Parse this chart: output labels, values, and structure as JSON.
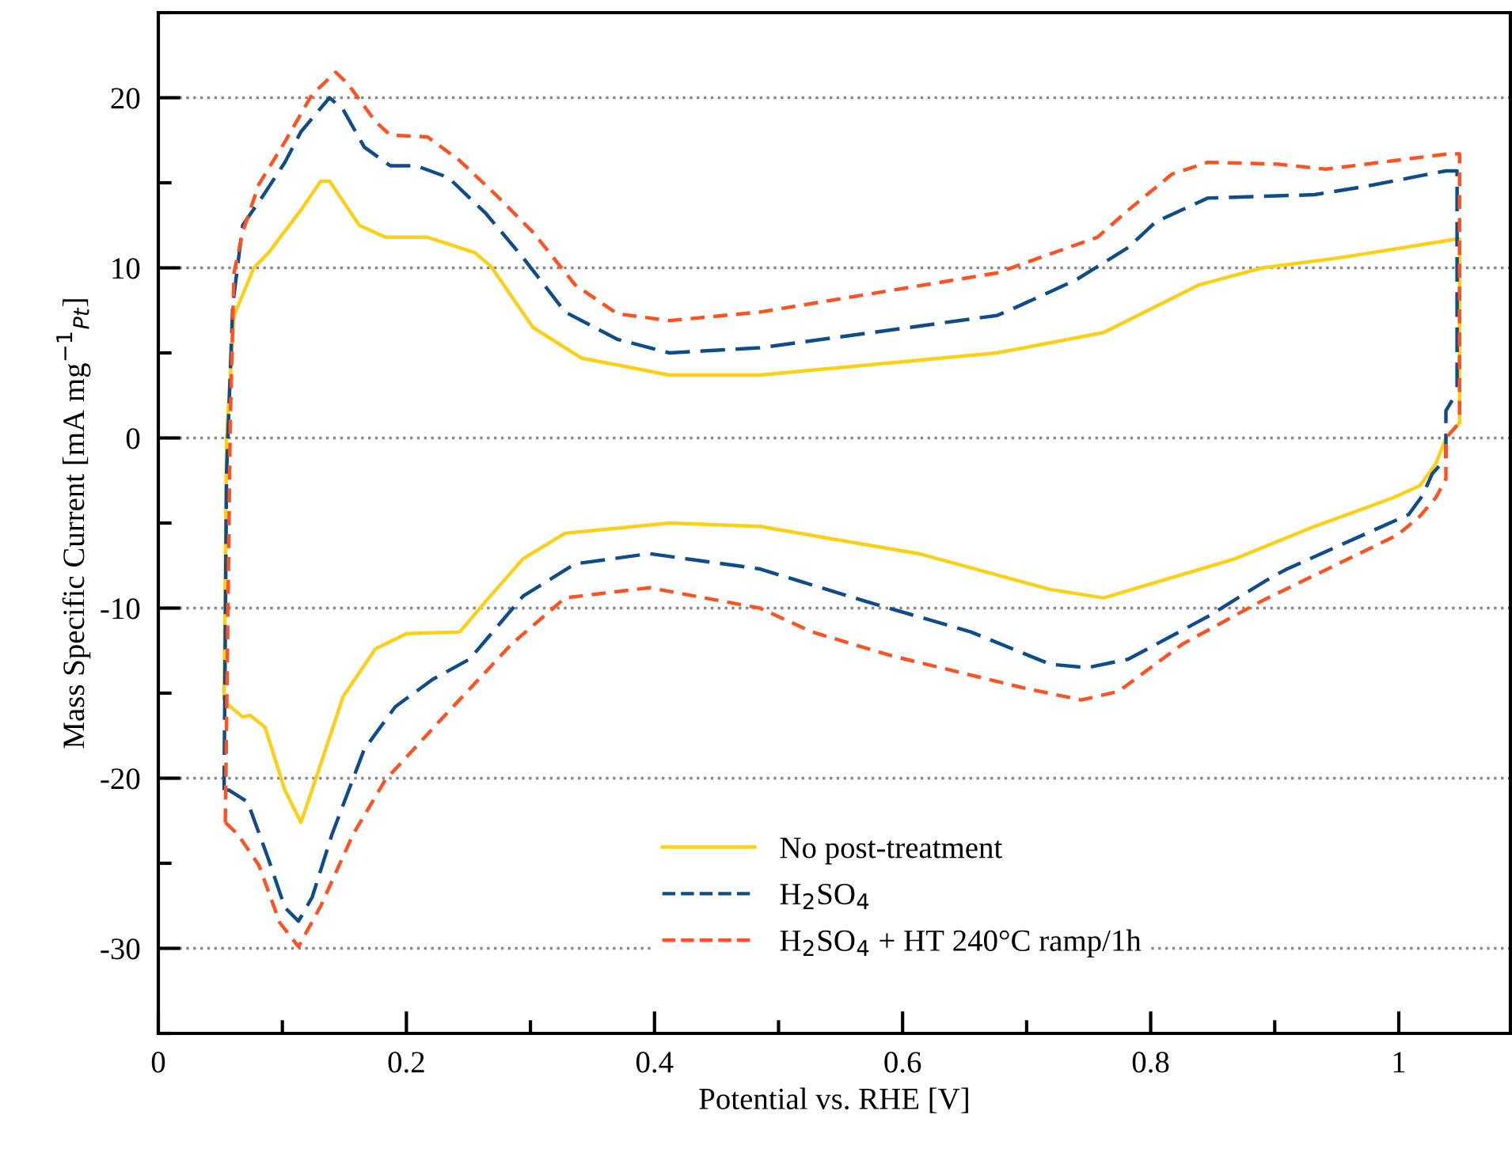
{
  "chart_data": {
    "type": "line",
    "xlabel": "Potential vs. RHE [V]",
    "ylabel": "Mass Specific Current [mA mg$^{−1}$$_{Pt}$]",
    "xlim": [
      0,
      1.09
    ],
    "xticks": [
      0,
      {
        "value": 0.1,
        "label": null
      },
      0.2,
      {
        "value": 0.3,
        "label": null
      },
      0.4,
      {
        "value": 0.5,
        "label": null
      },
      0.6,
      {
        "value": 0.7,
        "label": null
      },
      0.8,
      {
        "value": 0.9,
        "label": null
      },
      1
    ],
    "ylim": [
      -35,
      25
    ],
    "yticks": [
      {
        "value": -35,
        "label": null
      },
      -30,
      {
        "value": -25,
        "label": null
      },
      -20,
      {
        "value": -15,
        "label": null
      },
      -10,
      {
        "value": -5,
        "label": null
      },
      0,
      {
        "value": 5,
        "label": null
      },
      10,
      {
        "value": 15,
        "label": null
      },
      20,
      {
        "value": 25,
        "label": null
      }
    ],
    "grid": "y",
    "legend": "bottom",
    "marker": "none",
    "series": [
      {
        "name": "No post-treatment",
        "color": "#fdd017",
        "line_style": "solid",
        "x": [
          0.053,
          0.055,
          0.061,
          0.077,
          0.089,
          0.115,
          0.131,
          0.138,
          0.162,
          0.183,
          0.217,
          0.255,
          0.268,
          0.302,
          0.341,
          0.412,
          0.485,
          0.676,
          0.762,
          0.839,
          0.89,
          0.953,
          1.047,
          1.049,
          1.049
        ],
        "values": [
          -15.3,
          0,
          7.2,
          10.0,
          10.9,
          13.4,
          15.1,
          15.1,
          12.5,
          11.8,
          11.8,
          10.9,
          10.1,
          6.5,
          4.7,
          3.7,
          3.7,
          5.0,
          6.2,
          9.0,
          10.0,
          10.6,
          11.7,
          11.7,
          0.9
        ]
      },
      {
        "color": "#fdd017",
        "line_style": "solid",
        "x": [
          0.053,
          0.055,
          0.068,
          0.074,
          0.086,
          0.102,
          0.115,
          0.128,
          0.149,
          0.175,
          0.2,
          0.243,
          0.264,
          0.294,
          0.328,
          0.412,
          0.485,
          0.613,
          0.719,
          0.762,
          0.868,
          0.932,
          0.996,
          1.017,
          1.03,
          1.038,
          1.049
        ],
        "values": [
          -15.3,
          -15.6,
          -16.4,
          -16.3,
          -17.0,
          -20.7,
          -22.6,
          -19.8,
          -15.2,
          -12.4,
          -11.5,
          -11.4,
          -9.6,
          -7.1,
          -5.6,
          -5.0,
          -5.2,
          -6.8,
          -8.9,
          -9.4,
          -7.1,
          -5.2,
          -3.5,
          -2.8,
          -1.5,
          0,
          0.9
        ]
      },
      {
        "name": "H$_{2}$SO$_{4}$",
        "color": "#0f4c8a",
        "line_style": "dashed",
        "x": [
          0.053,
          0.055,
          0.06,
          0.068,
          0.085,
          0.102,
          0.115,
          0.138,
          0.149,
          0.166,
          0.187,
          0.208,
          0.234,
          0.264,
          0.294,
          0.328,
          0.37,
          0.412,
          0.485,
          0.676,
          0.689,
          0.74,
          0.782,
          0.804,
          0.846,
          0.932,
          0.974,
          1.038,
          1.047,
          1.047
        ],
        "values": [
          -20.7,
          -2.1,
          7.8,
          12.5,
          14.3,
          16.2,
          18.0,
          20.0,
          19.3,
          17.1,
          16.0,
          16.0,
          15.3,
          13.2,
          10.6,
          7.4,
          5.8,
          5.0,
          5.3,
          7.2,
          7.6,
          9.3,
          11.2,
          12.7,
          14.1,
          14.3,
          14.8,
          15.7,
          15.7,
          2.7
        ]
      },
      {
        "color": "#0f4c8a",
        "line_style": "dashed",
        "x": [
          0.053,
          0.057,
          0.072,
          0.089,
          0.102,
          0.113,
          0.124,
          0.14,
          0.166,
          0.191,
          0.221,
          0.251,
          0.294,
          0.336,
          0.396,
          0.485,
          0.57,
          0.655,
          0.719,
          0.749,
          0.782,
          0.846,
          0.897,
          0.91,
          1.008,
          1.019,
          1.027,
          1.038,
          1.038,
          1.047
        ],
        "values": [
          -20.7,
          -20.7,
          -21.4,
          -24.8,
          -27.6,
          -28.4,
          -27.0,
          -23.3,
          -18.3,
          -15.8,
          -14.2,
          -13.0,
          -9.3,
          -7.4,
          -6.8,
          -7.7,
          -9.6,
          -11.4,
          -13.3,
          -13.5,
          -13.0,
          -10.5,
          -8.2,
          -7.7,
          -4.5,
          -3.4,
          -2.1,
          -1.2,
          1.6,
          2.7
        ]
      },
      {
        "name": "H$_{2}$SO$_{4}$ + HT 240°C ramp/1h",
        "color": "#ff5222",
        "line_style": "dashed",
        "x": [
          0.054,
          0.058,
          0.061,
          0.068,
          0.081,
          0.102,
          0.124,
          0.143,
          0.153,
          0.175,
          0.187,
          0.217,
          0.243,
          0.272,
          0.302,
          0.336,
          0.37,
          0.412,
          0.485,
          0.676,
          0.757,
          0.782,
          0.817,
          0.846,
          0.902,
          0.941,
          0.996,
          1.04,
          1.049,
          1.049
        ],
        "values": [
          -22.6,
          0.9,
          9.7,
          12.1,
          14.9,
          17.4,
          20.2,
          21.5,
          20.8,
          18.6,
          17.8,
          17.7,
          16.3,
          14.3,
          12.1,
          9.0,
          7.3,
          6.9,
          7.4,
          9.7,
          11.8,
          13.4,
          15.5,
          16.2,
          16.1,
          15.8,
          16.3,
          16.7,
          16.7,
          0.9
        ]
      },
      {
        "color": "#ff5222",
        "line_style": "dashed",
        "x": [
          0.054,
          0.064,
          0.081,
          0.098,
          0.113,
          0.131,
          0.157,
          0.183,
          0.226,
          0.285,
          0.328,
          0.396,
          0.485,
          0.527,
          0.591,
          0.698,
          0.744,
          0.774,
          0.826,
          0.889,
          0.999,
          1.017,
          1.03,
          1.038,
          1.038,
          1.049
        ],
        "values": [
          -22.6,
          -23.3,
          -25.1,
          -28.5,
          -29.9,
          -27.5,
          -23.3,
          -20.1,
          -16.7,
          -12.1,
          -9.4,
          -8.8,
          -10.0,
          -11.4,
          -12.8,
          -14.7,
          -15.4,
          -14.9,
          -12.1,
          -9.6,
          -5.7,
          -4.6,
          -3.5,
          -2.4,
          0,
          0.9
        ]
      }
    ]
  }
}
